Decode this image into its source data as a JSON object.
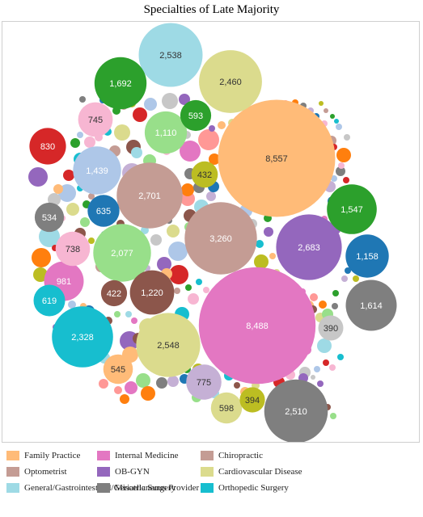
{
  "chart_data": {
    "type": "bubble",
    "title": "Specialties of Late Majority",
    "legend_position": "bottom",
    "categories": [
      {
        "name": "Family Practice",
        "color": "#ffbb78"
      },
      {
        "name": "Optometrist",
        "color": "#c49c94"
      },
      {
        "name": "General/Gastrointestinal/Geriatric Surgery",
        "color": "#9edae5"
      },
      {
        "name": "Internal Medicine",
        "color": "#e377c2"
      },
      {
        "name": "OB-GYN",
        "color": "#9467bd"
      },
      {
        "name": "Miscellaneous Provider",
        "color": "#7f7f7f"
      },
      {
        "name": "Chiropractic",
        "color": "#c49c94"
      },
      {
        "name": "Cardiovascular Disease",
        "color": "#dbdb8d"
      },
      {
        "name": "Orthopedic Surgery",
        "color": "#17becf"
      }
    ],
    "bubbles": [
      {
        "label": "8,557",
        "value": 8557,
        "color": "#ffbb78"
      },
      {
        "label": "8,488",
        "value": 8488,
        "color": "#e377c2"
      },
      {
        "label": "3,260",
        "value": 3260,
        "color": "#c49c94"
      },
      {
        "label": "2,701",
        "value": 2701,
        "color": "#c49c94"
      },
      {
        "label": "2,683",
        "value": 2683,
        "color": "#9467bd"
      },
      {
        "label": "2,548",
        "value": 2548,
        "color": "#dbdb8d"
      },
      {
        "label": "2,538",
        "value": 2538,
        "color": "#9edae5"
      },
      {
        "label": "2,510",
        "value": 2510,
        "color": "#7f7f7f"
      },
      {
        "label": "2,460",
        "value": 2460,
        "color": "#dbdb8d"
      },
      {
        "label": "2,328",
        "value": 2328,
        "color": "#17becf"
      },
      {
        "label": "2,077",
        "value": 2077,
        "color": "#98df8a"
      },
      {
        "label": "1,692",
        "value": 1692,
        "color": "#2ca02c"
      },
      {
        "label": "1,614",
        "value": 1614,
        "color": "#7f7f7f"
      },
      {
        "label": "1,547",
        "value": 1547,
        "color": "#2ca02c"
      },
      {
        "label": "1,439",
        "value": 1439,
        "color": "#aec7e8"
      },
      {
        "label": "1,220",
        "value": 1220,
        "color": "#8c564b"
      },
      {
        "label": "1,158",
        "value": 1158,
        "color": "#1f77b4"
      },
      {
        "label": "1,110",
        "value": 1110,
        "color": "#98df8a"
      },
      {
        "label": "981",
        "value": 981,
        "color": "#e377c2"
      },
      {
        "label": "830",
        "value": 830,
        "color": "#d62728"
      },
      {
        "label": "775",
        "value": 775,
        "color": "#c5b0d5"
      },
      {
        "label": "745",
        "value": 745,
        "color": "#f7b6d2"
      },
      {
        "label": "738",
        "value": 738,
        "color": "#f7b6d2"
      },
      {
        "label": "635",
        "value": 635,
        "color": "#1f77b4"
      },
      {
        "label": "619",
        "value": 619,
        "color": "#17becf"
      },
      {
        "label": "598",
        "value": 598,
        "color": "#dbdb8d"
      },
      {
        "label": "593",
        "value": 593,
        "color": "#2ca02c"
      },
      {
        "label": "545",
        "value": 545,
        "color": "#ffbb78"
      },
      {
        "label": "534",
        "value": 534,
        "color": "#7f7f7f"
      },
      {
        "label": "432",
        "value": 432,
        "color": "#bcbd22"
      },
      {
        "label": "422",
        "value": 422,
        "color": "#8c564b"
      },
      {
        "label": "394",
        "value": 394,
        "color": "#bcbd22"
      },
      {
        "label": "390",
        "value": 390,
        "color": "#c7c7c7"
      }
    ],
    "small_bubble_palette": [
      "#ff7f0e",
      "#1f77b4",
      "#2ca02c",
      "#d62728",
      "#9467bd",
      "#8c564b",
      "#e377c2",
      "#7f7f7f",
      "#bcbd22",
      "#17becf",
      "#aec7e8",
      "#ffbb78",
      "#98df8a",
      "#ff9896",
      "#c5b0d5",
      "#c49c94",
      "#f7b6d2",
      "#c7c7c7",
      "#dbdb8d",
      "#9edae5"
    ]
  }
}
